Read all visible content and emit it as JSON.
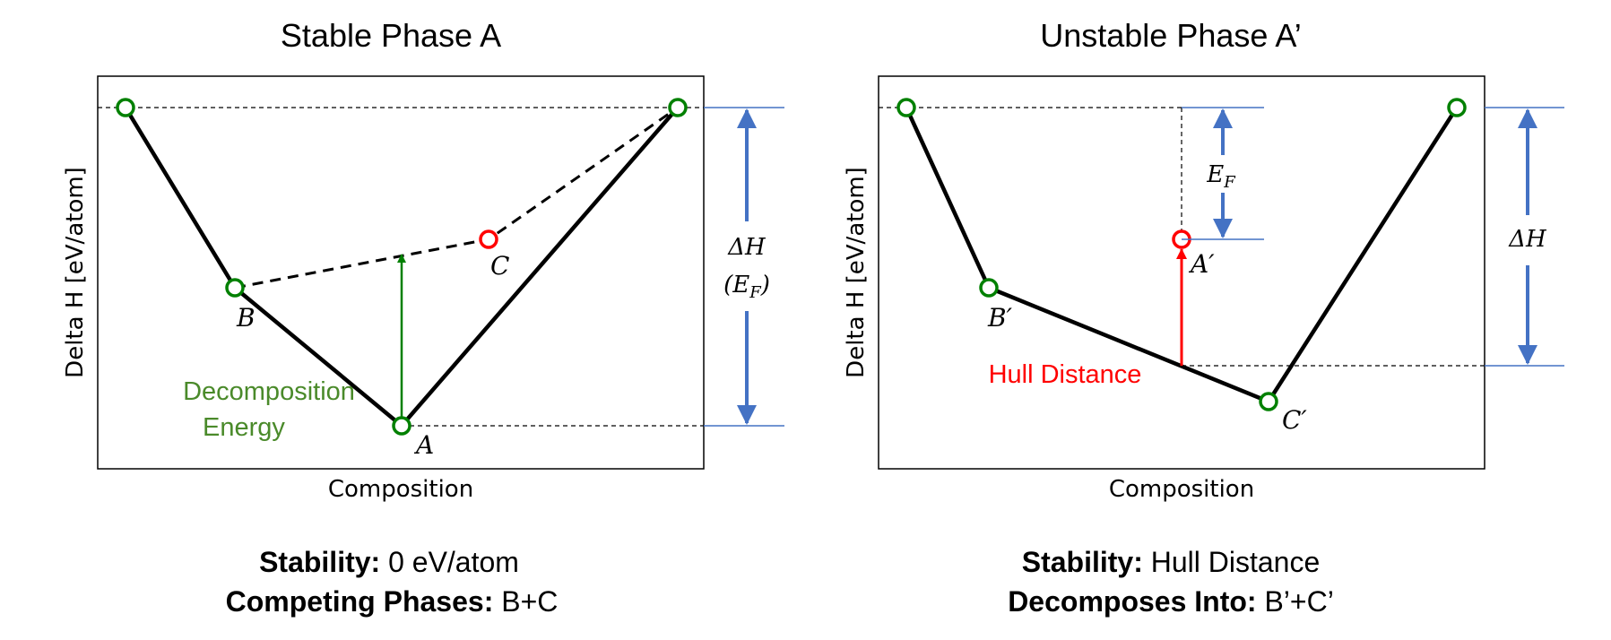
{
  "colors": {
    "hull_line": "#000000",
    "stable_point": "#008000",
    "unstable_point": "#ff0000",
    "decomposition_arrow": "#008000",
    "hull_distance_arrow": "#ff0000",
    "delta_h_arrow": "#4472c4",
    "decomposition_text": "#4a8a2a"
  },
  "left_panel": {
    "title": "Stable Phase A",
    "xlabel": "Composition",
    "ylabel": "Delta H [eV/atom]",
    "point_labels": {
      "b": "B",
      "c": "C",
      "a": "A"
    },
    "decomposition_label": {
      "line1": "Decomposition",
      "line2": "Energy"
    },
    "delta_h_label": "ΔH",
    "ef_label": "(E",
    "ef_sub": "F",
    "ef_close": ")",
    "caption": {
      "line1_bold": "Stability:",
      "line1_value": " 0 eV/atom",
      "line2_bold": "Competing Phases:",
      "line2_value": " B+C"
    }
  },
  "right_panel": {
    "title": "Unstable Phase A’",
    "xlabel": "Composition",
    "ylabel": "Delta H [eV/atom]",
    "point_labels": {
      "a_prime": "A′",
      "b_prime": "B′",
      "c_prime": "C′"
    },
    "hull_distance_label": "Hull Distance",
    "ef_label": "E",
    "ef_sub": "F",
    "delta_h_label": "ΔH",
    "caption": {
      "line1_bold": "Stability:",
      "line1_value": " Hull Distance",
      "line2_bold": "Decomposes Into:",
      "line2_value": " B’+C’"
    }
  }
}
